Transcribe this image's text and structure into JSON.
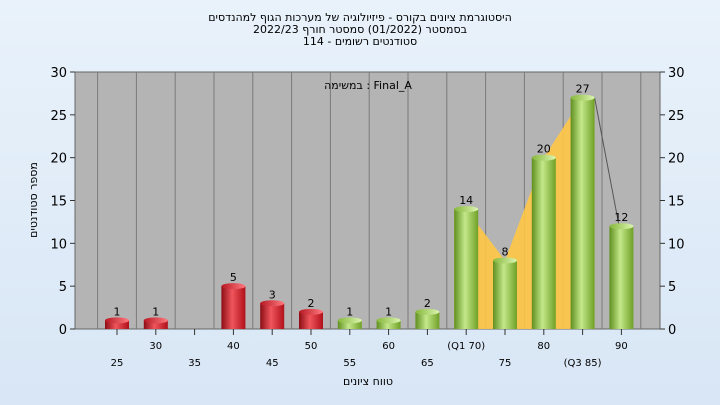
{
  "chart_data": {
    "type": "bar",
    "title_lines": [
      "היסטוגרמת ציונים בקורס - פיזיולוגיה של מערכות הגוף למהנדסים",
      "2022/23 בסמסטר (01/2022) סמסטר חורף",
      "114 - סטודנטים רשומים"
    ],
    "annotation": "במשימה : Final_A",
    "xlabel": "טווח ציונים",
    "ylabel": "מספר סטודנטים",
    "ylim": [
      0,
      30
    ],
    "yticks": [
      0,
      5,
      10,
      15,
      20,
      25,
      30
    ],
    "categories": [
      "25",
      "30",
      "35",
      "40",
      "45",
      "50",
      "55",
      "60",
      "65",
      "(Q1 70)",
      "75",
      "80",
      "(Q3 85)",
      "90"
    ],
    "values": [
      1,
      1,
      0,
      5,
      3,
      2,
      1,
      1,
      2,
      14,
      8,
      20,
      27,
      12
    ],
    "bar_colors": [
      "red",
      "red",
      "red",
      "red",
      "red",
      "red",
      "green",
      "green",
      "green",
      "green",
      "green",
      "green",
      "green",
      "green"
    ],
    "area_band": {
      "from_category": "(Q1 70)",
      "to_category": "(Q3 85)"
    },
    "grid": true,
    "colors": {
      "red": "#d8202a",
      "green": "#8ec63f",
      "band": "#ffc845",
      "plot_bg": "#b4b4b4"
    }
  }
}
